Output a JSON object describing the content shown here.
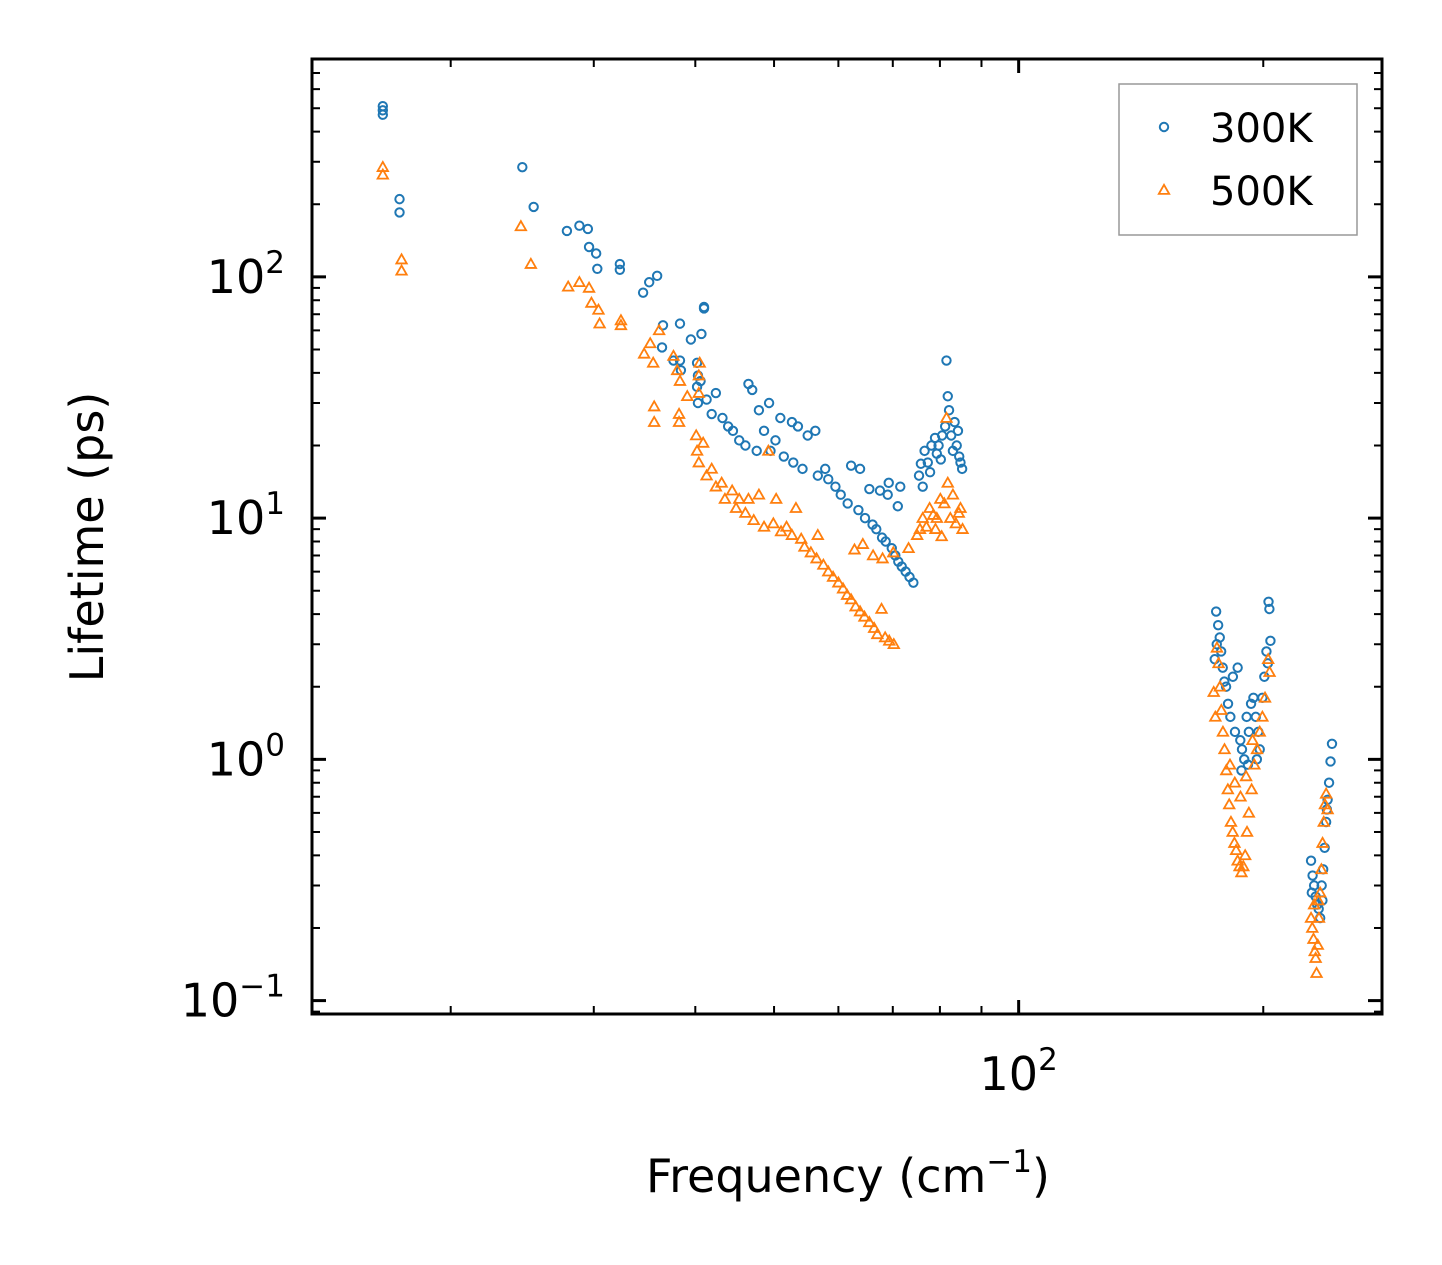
{
  "chart_data": {
    "type": "scatter",
    "xscale": "log",
    "yscale": "log",
    "xlim": [
      13.5,
      280
    ],
    "ylim": [
      0.088,
      800
    ],
    "xlabel": "Frequency (cm",
    "xlabel_sup": "−1",
    "xlabel_tail": ")",
    "ylabel": "Lifetime (ps)",
    "x_ticks": [
      {
        "value": 100,
        "base": "10",
        "exp": "2"
      }
    ],
    "y_ticks": [
      {
        "value": 0.1,
        "base": "10",
        "exp": "−1"
      },
      {
        "value": 1,
        "base": "10",
        "exp": "0"
      },
      {
        "value": 10,
        "base": "10",
        "exp": "1"
      },
      {
        "value": 100,
        "base": "10",
        "exp": "2"
      }
    ],
    "legend": {
      "location": "top-right"
    },
    "series": [
      {
        "name": "300K",
        "marker": "circle",
        "color": "#1f77b4",
        "points": [
          [
            16.5,
            510
          ],
          [
            16.5,
            470
          ],
          [
            16.5,
            490
          ],
          [
            17.3,
            210
          ],
          [
            17.3,
            185
          ],
          [
            24.5,
            285
          ],
          [
            25.3,
            195
          ],
          [
            27.8,
            155
          ],
          [
            28.8,
            163
          ],
          [
            29.5,
            158
          ],
          [
            29.6,
            133
          ],
          [
            30.2,
            125
          ],
          [
            30.3,
            108
          ],
          [
            32.3,
            113
          ],
          [
            32.3,
            107
          ],
          [
            34.5,
            86
          ],
          [
            35.1,
            95
          ],
          [
            35.9,
            101
          ],
          [
            36.5,
            63
          ],
          [
            36.4,
            51
          ],
          [
            37.6,
            45
          ],
          [
            38.3,
            64
          ],
          [
            38.3,
            45
          ],
          [
            38.4,
            41
          ],
          [
            39.5,
            55
          ],
          [
            41.0,
            74
          ],
          [
            41.0,
            75
          ],
          [
            40.2,
            44
          ],
          [
            40.7,
            58
          ],
          [
            40.3,
            39
          ],
          [
            40.2,
            35
          ],
          [
            40.3,
            30
          ],
          [
            40.6,
            37
          ],
          [
            41.3,
            31
          ],
          [
            41.9,
            27
          ],
          [
            42.4,
            33
          ],
          [
            43.2,
            26
          ],
          [
            43.9,
            24
          ],
          [
            44.5,
            23
          ],
          [
            45.3,
            21
          ],
          [
            46.1,
            20
          ],
          [
            46.5,
            36
          ],
          [
            47.0,
            34
          ],
          [
            47.6,
            19
          ],
          [
            47.9,
            28
          ],
          [
            48.6,
            23
          ],
          [
            49.3,
            30
          ],
          [
            49.5,
            19
          ],
          [
            50.2,
            21
          ],
          [
            50.9,
            26
          ],
          [
            51.4,
            18
          ],
          [
            52.6,
            25
          ],
          [
            52.8,
            17
          ],
          [
            53.5,
            24
          ],
          [
            54.2,
            16
          ],
          [
            55.0,
            22
          ],
          [
            56.2,
            23
          ],
          [
            56.6,
            15
          ],
          [
            57.8,
            16
          ],
          [
            58.3,
            14.5
          ],
          [
            59.5,
            13.5
          ],
          [
            60.4,
            12.5
          ],
          [
            61.6,
            11.5
          ],
          [
            62.2,
            16.5
          ],
          [
            63.5,
            10.8
          ],
          [
            63.8,
            16.0
          ],
          [
            64.7,
            10.0
          ],
          [
            65.5,
            13.2
          ],
          [
            66.1,
            9.4
          ],
          [
            66.8,
            9.0
          ],
          [
            67.5,
            13.0
          ],
          [
            67.9,
            8.3
          ],
          [
            68.6,
            8.0
          ],
          [
            69.0,
            12.5
          ],
          [
            69.2,
            14.0
          ],
          [
            69.8,
            7.5
          ],
          [
            70.5,
            7.0
          ],
          [
            71.1,
            6.6
          ],
          [
            71.8,
            6.3
          ],
          [
            72.6,
            6.0
          ],
          [
            73.4,
            5.7
          ],
          [
            74.2,
            5.4
          ],
          [
            71.5,
            13.5
          ],
          [
            71.0,
            11.2
          ],
          [
            75.4,
            15.0
          ],
          [
            75.8,
            16.8
          ],
          [
            76.6,
            19.0
          ],
          [
            77.3,
            17.0
          ],
          [
            78.1,
            20.0
          ],
          [
            78.9,
            21.5
          ],
          [
            79.7,
            20.0
          ],
          [
            80.5,
            22.0
          ],
          [
            81.2,
            24.0
          ],
          [
            81.5,
            45.0
          ],
          [
            81.8,
            32.0
          ],
          [
            82.1,
            28.0
          ],
          [
            82.6,
            22.0
          ],
          [
            83.4,
            25.0
          ],
          [
            83.9,
            20.0
          ],
          [
            84.2,
            23.0
          ],
          [
            84.5,
            18.0
          ],
          [
            84.8,
            17.0
          ],
          [
            85.2,
            16.0
          ],
          [
            83.0,
            19.0
          ],
          [
            80.2,
            17.5
          ],
          [
            79.3,
            18.5
          ],
          [
            77.8,
            15.5
          ],
          [
            76.2,
            13.5
          ],
          [
            175.0,
            4.1
          ],
          [
            176.0,
            3.6
          ],
          [
            175.3,
            3.0
          ],
          [
            174.3,
            2.6
          ],
          [
            176.8,
            3.2
          ],
          [
            177.5,
            2.8
          ],
          [
            178.3,
            2.4
          ],
          [
            179.1,
            2.1
          ],
          [
            180.0,
            2.0
          ],
          [
            181.0,
            1.7
          ],
          [
            182.2,
            1.5
          ],
          [
            183.5,
            2.2
          ],
          [
            184.6,
            1.3
          ],
          [
            186.0,
            2.4
          ],
          [
            187.4,
            1.2
          ],
          [
            188.3,
            1.1
          ],
          [
            189.5,
            1.0
          ],
          [
            190.8,
            1.5
          ],
          [
            192.0,
            1.3
          ],
          [
            193.2,
            1.7
          ],
          [
            194.5,
            1.8
          ],
          [
            195.8,
            1.5
          ],
          [
            197.2,
            1.3
          ],
          [
            198.0,
            1.1
          ],
          [
            199.5,
            1.8
          ],
          [
            200.6,
            2.2
          ],
          [
            201.8,
            2.8
          ],
          [
            203.0,
            4.5
          ],
          [
            203.5,
            4.2
          ],
          [
            204.1,
            3.1
          ],
          [
            202.6,
            2.5
          ],
          [
            196.4,
            1.0
          ],
          [
            191.5,
            0.95
          ],
          [
            188.0,
            0.9
          ],
          [
            229.0,
            0.38
          ],
          [
            230.0,
            0.33
          ],
          [
            231.0,
            0.3
          ],
          [
            229.5,
            0.28
          ],
          [
            232.0,
            0.27
          ],
          [
            233.0,
            0.25
          ],
          [
            234.0,
            0.24
          ],
          [
            235.0,
            0.22
          ],
          [
            236.0,
            0.3
          ],
          [
            237.0,
            0.35
          ],
          [
            238.0,
            0.43
          ],
          [
            239.0,
            0.55
          ],
          [
            240.0,
            0.68
          ],
          [
            241.0,
            0.8
          ],
          [
            242.0,
            0.98
          ],
          [
            243.0,
            1.16
          ],
          [
            236.5,
            0.26
          ],
          [
            239.5,
            0.62
          ]
        ]
      },
      {
        "name": "500K",
        "marker": "triangle",
        "color": "#ff7f0e",
        "points": [
          [
            16.5,
            285
          ],
          [
            16.5,
            265
          ],
          [
            17.4,
            118
          ],
          [
            17.4,
            106
          ],
          [
            24.4,
            162
          ],
          [
            25.1,
            113
          ],
          [
            27.9,
            91
          ],
          [
            28.8,
            95
          ],
          [
            29.6,
            90
          ],
          [
            29.8,
            78
          ],
          [
            30.4,
            73
          ],
          [
            30.5,
            64
          ],
          [
            32.4,
            66
          ],
          [
            32.4,
            63
          ],
          [
            34.6,
            48
          ],
          [
            35.2,
            53
          ],
          [
            35.5,
            44
          ],
          [
            35.6,
            25
          ],
          [
            35.6,
            29
          ],
          [
            36.1,
            60
          ],
          [
            37.6,
            47
          ],
          [
            38.0,
            41
          ],
          [
            38.3,
            37
          ],
          [
            38.2,
            25
          ],
          [
            38.2,
            27
          ],
          [
            39.1,
            32
          ],
          [
            40.5,
            44
          ],
          [
            40.4,
            39
          ],
          [
            40.4,
            33
          ],
          [
            40.1,
            22
          ],
          [
            40.2,
            19
          ],
          [
            40.4,
            17
          ],
          [
            40.9,
            20.5
          ],
          [
            41.3,
            15
          ],
          [
            41.9,
            16
          ],
          [
            42.4,
            13.5
          ],
          [
            43.1,
            14
          ],
          [
            43.5,
            12
          ],
          [
            44.4,
            13
          ],
          [
            44.9,
            11
          ],
          [
            45.3,
            12
          ],
          [
            46.1,
            10.5
          ],
          [
            46.5,
            12
          ],
          [
            47.2,
            9.8
          ],
          [
            47.9,
            12.5
          ],
          [
            48.6,
            9.2
          ],
          [
            49.2,
            19
          ],
          [
            49.9,
            9.5
          ],
          [
            50.3,
            12
          ],
          [
            51.0,
            8.8
          ],
          [
            51.8,
            9.2
          ],
          [
            52.6,
            8.5
          ],
          [
            53.2,
            11
          ],
          [
            54.0,
            8.2
          ],
          [
            54.5,
            7.6
          ],
          [
            55.5,
            7.2
          ],
          [
            56.4,
            6.8
          ],
          [
            56.6,
            8.5
          ],
          [
            57.5,
            6.4
          ],
          [
            58.3,
            6.0
          ],
          [
            59.1,
            5.7
          ],
          [
            60.0,
            5.4
          ],
          [
            60.8,
            5.1
          ],
          [
            61.5,
            4.8
          ],
          [
            62.2,
            4.6
          ],
          [
            63.0,
            4.3
          ],
          [
            63.8,
            4.1
          ],
          [
            64.6,
            3.9
          ],
          [
            65.5,
            3.7
          ],
          [
            66.4,
            3.5
          ],
          [
            67.0,
            3.3
          ],
          [
            67.8,
            4.2
          ],
          [
            68.5,
            3.2
          ],
          [
            69.3,
            3.1
          ],
          [
            70.2,
            3.0
          ],
          [
            62.8,
            7.4
          ],
          [
            64.3,
            7.8
          ],
          [
            66.2,
            7.0
          ],
          [
            68.0,
            6.8
          ],
          [
            70.1,
            7.2
          ],
          [
            73.2,
            7.5
          ],
          [
            75.0,
            8.5
          ],
          [
            75.6,
            9.0
          ],
          [
            76.2,
            10.0
          ],
          [
            77.0,
            9.2
          ],
          [
            77.7,
            11.0
          ],
          [
            78.5,
            10.3
          ],
          [
            79.3,
            10.0
          ],
          [
            80.1,
            12.0
          ],
          [
            81.0,
            11.5
          ],
          [
            81.5,
            26.0
          ],
          [
            81.8,
            14.0
          ],
          [
            82.4,
            10.0
          ],
          [
            83.0,
            12.5
          ],
          [
            83.7,
            9.5
          ],
          [
            84.4,
            10.5
          ],
          [
            84.8,
            11.0
          ],
          [
            85.3,
            9.0
          ],
          [
            79.0,
            9.0
          ],
          [
            80.4,
            8.4
          ],
          [
            173.8,
            1.9
          ],
          [
            174.6,
            1.5
          ],
          [
            175.4,
            2.9
          ],
          [
            176.2,
            2.5
          ],
          [
            176.9,
            2.0
          ],
          [
            177.6,
            1.6
          ],
          [
            178.4,
            1.3
          ],
          [
            179.2,
            1.1
          ],
          [
            180.1,
            0.9
          ],
          [
            180.9,
            0.75
          ],
          [
            181.6,
            0.65
          ],
          [
            182.5,
            0.55
          ],
          [
            183.4,
            0.5
          ],
          [
            184.3,
            0.45
          ],
          [
            185.2,
            0.42
          ],
          [
            186.0,
            0.38
          ],
          [
            187.0,
            0.36
          ],
          [
            188.0,
            0.34
          ],
          [
            189.0,
            0.36
          ],
          [
            190.0,
            0.4
          ],
          [
            191.0,
            0.5
          ],
          [
            192.0,
            0.6
          ],
          [
            193.5,
            0.75
          ],
          [
            195.0,
            0.95
          ],
          [
            196.5,
            1.1
          ],
          [
            198.0,
            1.3
          ],
          [
            199.5,
            1.5
          ],
          [
            201.0,
            1.8
          ],
          [
            202.8,
            2.6
          ],
          [
            203.6,
            2.3
          ],
          [
            182.0,
            0.95
          ],
          [
            184.5,
            0.8
          ],
          [
            187.5,
            0.7
          ],
          [
            190.5,
            0.85
          ],
          [
            194.0,
            1.2
          ],
          [
            229.0,
            0.22
          ],
          [
            229.8,
            0.2
          ],
          [
            230.6,
            0.18
          ],
          [
            231.4,
            0.16
          ],
          [
            232.0,
            0.15
          ],
          [
            232.6,
            0.13
          ],
          [
            233.4,
            0.17
          ],
          [
            234.2,
            0.22
          ],
          [
            235.0,
            0.28
          ],
          [
            235.8,
            0.35
          ],
          [
            236.6,
            0.45
          ],
          [
            237.4,
            0.55
          ],
          [
            238.2,
            0.65
          ],
          [
            239.0,
            0.72
          ],
          [
            240.0,
            0.62
          ],
          [
            231.0,
            0.25
          ],
          [
            233.8,
            0.26
          ]
        ]
      }
    ]
  }
}
